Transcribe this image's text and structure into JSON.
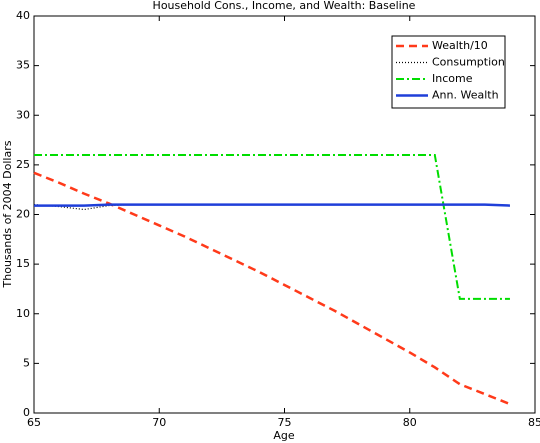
{
  "chart_data": {
    "type": "line",
    "title": "Household Cons., Income, and Wealth: Baseline",
    "xlabel": "Age",
    "ylabel": "Thousands of 2004 Dollars",
    "x": [
      65,
      66,
      67,
      68,
      69,
      70,
      71,
      72,
      73,
      74,
      75,
      76,
      77,
      78,
      79,
      80,
      81,
      82,
      83,
      84
    ],
    "series": [
      {
        "name": "Wealth/10",
        "color": "#ff3a1a",
        "style": "dashed",
        "values": [
          24.2,
          23.2,
          22.1,
          21.1,
          20.0,
          18.9,
          17.8,
          16.6,
          15.4,
          14.2,
          12.9,
          11.6,
          10.3,
          8.9,
          7.5,
          6.1,
          4.6,
          2.9,
          1.9,
          0.9
        ]
      },
      {
        "name": "Consumption",
        "color": "#000000",
        "style": "dotted",
        "values": [
          21.0,
          20.8,
          20.5,
          20.9,
          21.0,
          21.0,
          21.0,
          21.0,
          21.0,
          21.0,
          21.0,
          21.0,
          21.0,
          21.0,
          21.0,
          21.0,
          21.0,
          21.0,
          21.0,
          20.9
        ]
      },
      {
        "name": "Income",
        "color": "#00dd00",
        "style": "dashdot",
        "values": [
          26,
          26,
          26,
          26,
          26,
          26,
          26,
          26,
          26,
          26,
          26,
          26,
          26,
          26,
          26,
          26,
          26,
          11.5,
          11.5,
          11.5
        ]
      },
      {
        "name": "Ann. Wealth",
        "color": "#1f3fd9",
        "style": "solid",
        "values": [
          20.9,
          20.9,
          20.9,
          21.0,
          21.0,
          21.0,
          21.0,
          21.0,
          21.0,
          21.0,
          21.0,
          21.0,
          21.0,
          21.0,
          21.0,
          21.0,
          21.0,
          21.0,
          21.0,
          20.9
        ]
      }
    ],
    "xlim": [
      65,
      85
    ],
    "xticks": [
      65,
      70,
      75,
      80,
      85
    ],
    "ylim": [
      0,
      40
    ],
    "yticks": [
      0,
      5,
      10,
      15,
      20,
      25,
      30,
      35,
      40
    ],
    "legend": "northeast"
  }
}
